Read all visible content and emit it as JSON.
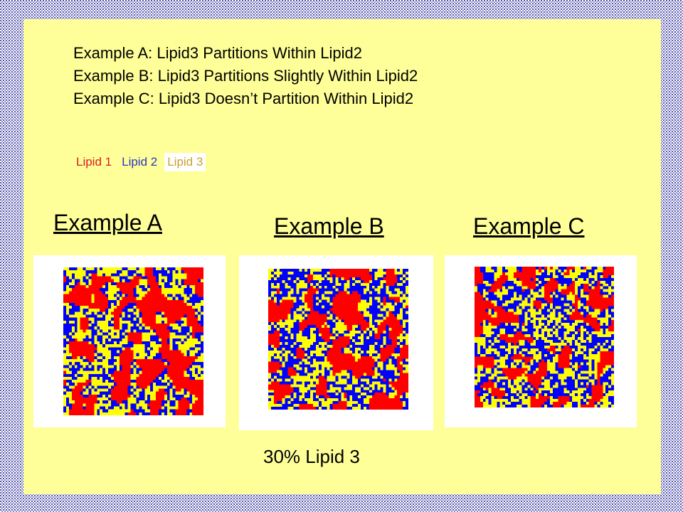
{
  "description": {
    "line_a": "Example A: Lipid3 Partitions Within Lipid2",
    "line_b": "Example B: Lipid3 Partitions Slightly Within Lipid2",
    "line_c": "Example C: Lipid3 Doesn’t Partition Within Lipid2"
  },
  "legend": [
    {
      "label": "Lipid 1",
      "color": "#d81c1c"
    },
    {
      "label": "Lipid 2",
      "color": "#2b35c2"
    },
    {
      "label": "Lipid 3",
      "color": "#c8a030"
    }
  ],
  "lattice_colors": {
    "lipid1": "#ff0000",
    "lipid2": "#0000ff",
    "lipid3": "#ffff00"
  },
  "examples": [
    {
      "heading": "Example A"
    },
    {
      "heading": "Example B"
    },
    {
      "heading": "Example C"
    }
  ],
  "caption": "30%  Lipid 3"
}
